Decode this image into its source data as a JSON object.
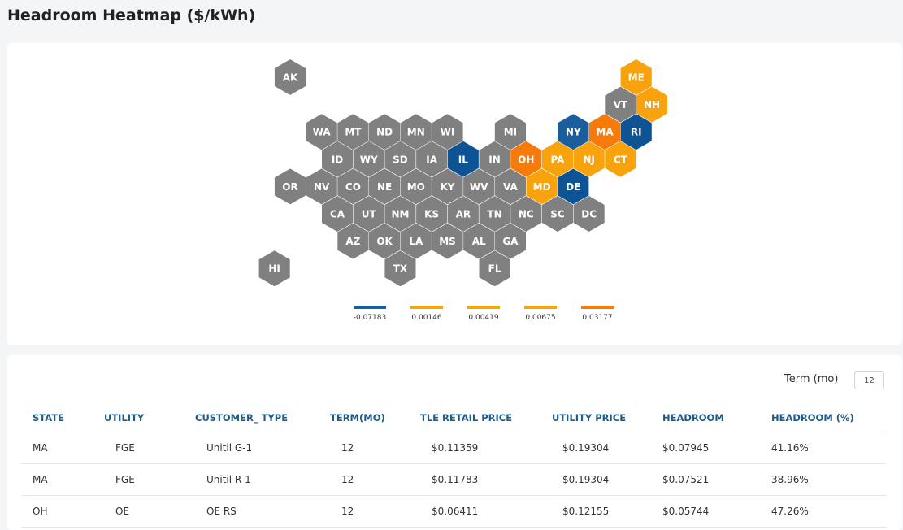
{
  "page": {
    "title": "Headroom Heatmap ($/kWh)"
  },
  "colors": {
    "neutral": "#808080",
    "blue": "#0e5494",
    "mid_blue": "#1b5e9e",
    "yellow": "#f8a30e",
    "orange": "#f77b0b"
  },
  "map": {
    "states": [
      {
        "code": "AK",
        "color": "neutral"
      },
      {
        "code": "ME",
        "color": "yellow"
      },
      {
        "code": "VT",
        "color": "neutral"
      },
      {
        "code": "NH",
        "color": "yellow"
      },
      {
        "code": "WA",
        "color": "neutral"
      },
      {
        "code": "MT",
        "color": "neutral"
      },
      {
        "code": "ND",
        "color": "neutral"
      },
      {
        "code": "MN",
        "color": "neutral"
      },
      {
        "code": "WI",
        "color": "neutral"
      },
      {
        "code": "MI",
        "color": "neutral"
      },
      {
        "code": "NY",
        "color": "mid_blue"
      },
      {
        "code": "MA",
        "color": "orange"
      },
      {
        "code": "RI",
        "color": "blue"
      },
      {
        "code": "ID",
        "color": "neutral"
      },
      {
        "code": "WY",
        "color": "neutral"
      },
      {
        "code": "SD",
        "color": "neutral"
      },
      {
        "code": "IA",
        "color": "neutral"
      },
      {
        "code": "IL",
        "color": "blue"
      },
      {
        "code": "IN",
        "color": "neutral"
      },
      {
        "code": "OH",
        "color": "orange"
      },
      {
        "code": "PA",
        "color": "yellow"
      },
      {
        "code": "NJ",
        "color": "yellow"
      },
      {
        "code": "CT",
        "color": "yellow"
      },
      {
        "code": "OR",
        "color": "neutral"
      },
      {
        "code": "NV",
        "color": "neutral"
      },
      {
        "code": "CO",
        "color": "neutral"
      },
      {
        "code": "NE",
        "color": "neutral"
      },
      {
        "code": "MO",
        "color": "neutral"
      },
      {
        "code": "KY",
        "color": "neutral"
      },
      {
        "code": "WV",
        "color": "neutral"
      },
      {
        "code": "VA",
        "color": "neutral"
      },
      {
        "code": "MD",
        "color": "yellow"
      },
      {
        "code": "DE",
        "color": "blue"
      },
      {
        "code": "CA",
        "color": "neutral"
      },
      {
        "code": "UT",
        "color": "neutral"
      },
      {
        "code": "NM",
        "color": "neutral"
      },
      {
        "code": "KS",
        "color": "neutral"
      },
      {
        "code": "AR",
        "color": "neutral"
      },
      {
        "code": "TN",
        "color": "neutral"
      },
      {
        "code": "NC",
        "color": "neutral"
      },
      {
        "code": "SC",
        "color": "neutral"
      },
      {
        "code": "DC",
        "color": "neutral"
      },
      {
        "code": "AZ",
        "color": "neutral"
      },
      {
        "code": "OK",
        "color": "neutral"
      },
      {
        "code": "LA",
        "color": "neutral"
      },
      {
        "code": "MS",
        "color": "neutral"
      },
      {
        "code": "AL",
        "color": "neutral"
      },
      {
        "code": "GA",
        "color": "neutral"
      },
      {
        "code": "HI",
        "color": "neutral"
      },
      {
        "code": "TX",
        "color": "neutral"
      },
      {
        "code": "FL",
        "color": "neutral"
      }
    ],
    "legend": [
      {
        "value": "-0.07183",
        "color": "mid_blue"
      },
      {
        "value": "0.00146",
        "color": "yellow"
      },
      {
        "value": "0.00419",
        "color": "yellow"
      },
      {
        "value": "0.00675",
        "color": "yellow"
      },
      {
        "value": "0.03177",
        "color": "orange"
      }
    ]
  },
  "term": {
    "label": "Term (mo)",
    "value": "12"
  },
  "table": {
    "headers": [
      "STATE",
      "UTILITY",
      "CUSTOMER_ TYPE",
      "TERM(MO)",
      "TLE RETAIL PRICE",
      "UTILITY PRICE",
      "HEADROOM",
      "HEADROOM (%)"
    ],
    "rows": [
      [
        "MA",
        "FGE",
        "Unitil G-1",
        "12",
        "$0.11359",
        "$0.19304",
        "$0.07945",
        "41.16%"
      ],
      [
        "MA",
        "FGE",
        "Unitil R-1",
        "12",
        "$0.11783",
        "$0.19304",
        "$0.07521",
        "38.96%"
      ],
      [
        "OH",
        "OE",
        "OE RS",
        "12",
        "$0.06411",
        "$0.12155",
        "$0.05744",
        "47.26%"
      ]
    ]
  }
}
